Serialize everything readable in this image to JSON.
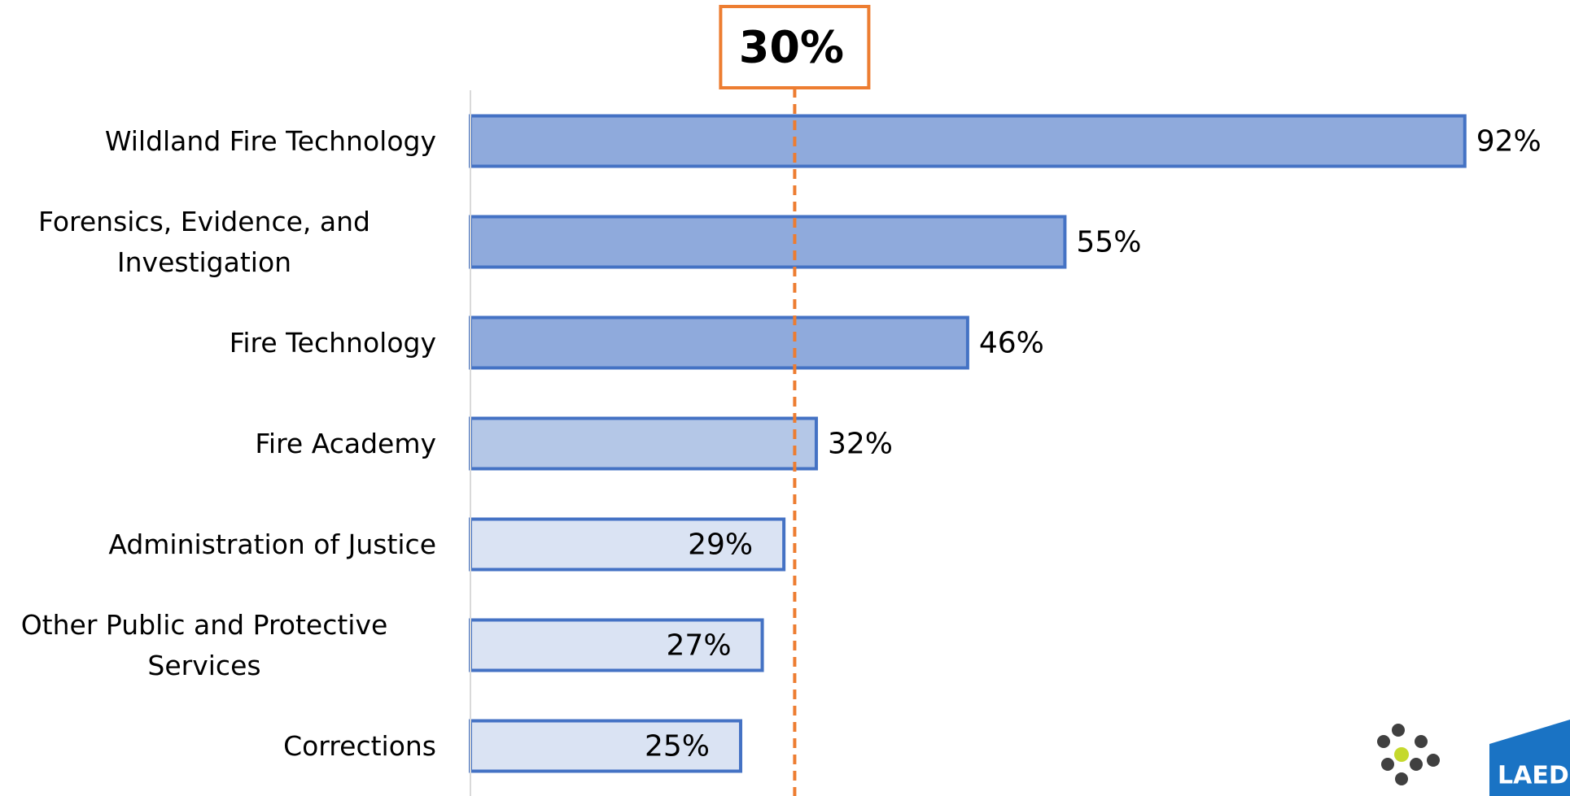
{
  "chart_data": {
    "type": "barh",
    "categories": [
      "Wildland Fire Technology",
      "Forensics, Evidence, and Investigation",
      "Fire Technology",
      "Fire Academy",
      "Administration of Justice",
      "Other Public and Protective Services",
      "Corrections"
    ],
    "values": [
      92,
      55,
      46,
      32,
      29,
      27,
      25
    ],
    "value_labels": [
      "92%",
      "55%",
      "46%",
      "32%",
      "29%",
      "27%",
      "25%"
    ],
    "colors": [
      "#8faadc",
      "#8faadc",
      "#8faadc",
      "#b4c7e7",
      "#dae3f3",
      "#dae3f3",
      "#dae3f3"
    ],
    "edge_color": "#4472c4",
    "xlim": [
      0,
      100
    ],
    "reference_line": {
      "value": 30,
      "label": "30%",
      "color": "#ed7d31"
    },
    "logo_text": "LAED"
  }
}
